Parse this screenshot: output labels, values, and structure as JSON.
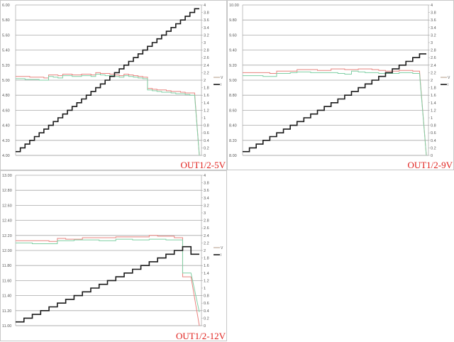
{
  "chart_data": [
    {
      "type": "line",
      "label": "OUT1/2-5V",
      "ylim_left": [
        4.0,
        6.0
      ],
      "left_ticks": [
        "4.00",
        "4.20",
        "4.40",
        "4.60",
        "4.80",
        "5.00",
        "5.20",
        "5.40",
        "5.60",
        "5.80",
        "6.00"
      ],
      "ylim_right": [
        0,
        4
      ],
      "right_ticks": [
        "0",
        "0.2",
        "0.4",
        "0.6",
        "0.8",
        "1",
        "1.2",
        "1.4",
        "1.6",
        "1.8",
        "2",
        "2.2",
        "2.4",
        "2.6",
        "2.8",
        "3",
        "3.2",
        "3.4",
        "3.6",
        "3.8",
        "4"
      ],
      "grid": true,
      "legend": {
        "placement": "right",
        "entries": [
          "V",
          "I"
        ]
      },
      "series": [
        {
          "axis": "left",
          "color": "#e8837f",
          "values": [
            5.05,
            5.05,
            5.05,
            5.04,
            5.04,
            5.04,
            5.03,
            5.07,
            5.07,
            5.06,
            5.08,
            5.08,
            5.07,
            5.07,
            5.08,
            5.08,
            5.07,
            5.1,
            5.09,
            5.09,
            5.08,
            5.07,
            5.06,
            5.08,
            5.07,
            5.06,
            5.05,
            5.04,
            4.89,
            4.88,
            4.87,
            4.87,
            4.86,
            4.85,
            4.85,
            4.84,
            4.83,
            4.83,
            4.0
          ]
        },
        {
          "axis": "left",
          "color": "#7fcfa4",
          "values": [
            5.02,
            5.02,
            5.01,
            5.01,
            5.01,
            5.0,
            5.0,
            5.05,
            5.04,
            5.03,
            5.06,
            5.06,
            5.05,
            5.05,
            5.06,
            5.06,
            5.05,
            5.08,
            5.07,
            5.06,
            5.06,
            5.05,
            5.04,
            5.06,
            5.05,
            5.04,
            5.03,
            5.02,
            4.87,
            4.86,
            4.85,
            4.84,
            4.84,
            4.83,
            4.82,
            4.82,
            4.81,
            4.8,
            4.0
          ]
        },
        {
          "axis": "right",
          "color": "#1a1a1a",
          "values": [
            0.1,
            0.2,
            0.3,
            0.4,
            0.5,
            0.6,
            0.7,
            0.8,
            0.9,
            1.0,
            1.1,
            1.2,
            1.3,
            1.4,
            1.5,
            1.6,
            1.7,
            1.8,
            1.9,
            2.0,
            2.1,
            2.2,
            2.3,
            2.4,
            2.5,
            2.6,
            2.7,
            2.8,
            2.9,
            3.0,
            3.1,
            3.2,
            3.3,
            3.4,
            3.5,
            3.6,
            3.7,
            3.8,
            3.9
          ]
        }
      ]
    },
    {
      "type": "line",
      "label": "OUT1/2-9V",
      "ylim_left": [
        8.0,
        10.0
      ],
      "left_ticks": [
        "8.00",
        "8.20",
        "8.40",
        "8.60",
        "8.80",
        "9.00",
        "9.20",
        "9.40",
        "9.60",
        "9.80",
        "10.00"
      ],
      "ylim_right": [
        0,
        4
      ],
      "right_ticks": [
        "0",
        "0.2",
        "0.4",
        "0.6",
        "0.8",
        "1",
        "1.2",
        "1.4",
        "1.6",
        "1.8",
        "2",
        "2.2",
        "2.4",
        "2.6",
        "2.8",
        "3",
        "3.2",
        "3.4",
        "3.6",
        "3.8",
        "4"
      ],
      "grid": true,
      "legend": {
        "placement": "right",
        "entries": [
          "V",
          "I"
        ]
      },
      "series": [
        {
          "axis": "left",
          "color": "#e8837f",
          "values": [
            9.1,
            9.1,
            9.1,
            9.1,
            9.09,
            9.12,
            9.12,
            9.12,
            9.14,
            9.14,
            9.14,
            9.13,
            9.13,
            9.15,
            9.15,
            9.14,
            9.14,
            9.15,
            9.15,
            9.14,
            9.13,
            9.12,
            9.12,
            9.13,
            9.13,
            9.12,
            8.0
          ]
        },
        {
          "axis": "left",
          "color": "#7fcfa4",
          "values": [
            9.06,
            9.06,
            9.06,
            9.05,
            9.05,
            9.09,
            9.09,
            9.1,
            9.11,
            9.11,
            9.1,
            9.1,
            9.1,
            9.1,
            9.09,
            9.08,
            9.12,
            9.11,
            9.1,
            9.1,
            9.09,
            9.09,
            9.09,
            9.1,
            9.1,
            9.09,
            8.0
          ]
        },
        {
          "axis": "right",
          "color": "#1a1a1a",
          "values": [
            0.1,
            0.2,
            0.3,
            0.4,
            0.5,
            0.6,
            0.7,
            0.8,
            0.9,
            1.0,
            1.1,
            1.2,
            1.3,
            1.4,
            1.5,
            1.6,
            1.7,
            1.8,
            1.9,
            2.0,
            2.1,
            2.2,
            2.3,
            2.4,
            2.5,
            2.6,
            2.7
          ]
        }
      ]
    },
    {
      "type": "line",
      "label": "OUT1/2-12V",
      "ylim_left": [
        11.0,
        13.0
      ],
      "left_ticks": [
        "11.00",
        "11.20",
        "11.40",
        "11.60",
        "11.80",
        "12.00",
        "12.20",
        "12.40",
        "12.60",
        "12.80",
        "13.00"
      ],
      "ylim_right": [
        0,
        4
      ],
      "right_ticks": [
        "0",
        "0.2",
        "0.4",
        "0.6",
        "0.8",
        "1",
        "1.2",
        "1.4",
        "1.6",
        "1.8",
        "2",
        "2.2",
        "2.4",
        "2.6",
        "2.8",
        "3",
        "3.2",
        "3.4",
        "3.6",
        "3.8",
        "4"
      ],
      "grid": true,
      "legend": {
        "placement": "right",
        "entries": [
          "V",
          "I"
        ]
      },
      "series": [
        {
          "axis": "left",
          "color": "#e8837f",
          "values": [
            12.13,
            12.13,
            12.13,
            12.13,
            12.12,
            12.16,
            12.15,
            12.15,
            12.17,
            12.17,
            12.17,
            12.17,
            12.18,
            12.18,
            12.18,
            12.18,
            12.2,
            12.19,
            12.19,
            12.17,
            11.65,
            11.0
          ]
        },
        {
          "axis": "left",
          "color": "#7fcfa4",
          "values": [
            12.1,
            12.1,
            12.09,
            12.09,
            12.09,
            12.13,
            12.13,
            12.14,
            12.14,
            12.14,
            12.13,
            12.13,
            12.15,
            12.15,
            12.14,
            12.14,
            12.15,
            12.15,
            12.14,
            12.14,
            11.7,
            11.18
          ]
        },
        {
          "axis": "right",
          "color": "#1a1a1a",
          "values": [
            0.1,
            0.2,
            0.3,
            0.4,
            0.5,
            0.6,
            0.7,
            0.8,
            0.9,
            1.0,
            1.1,
            1.2,
            1.3,
            1.4,
            1.5,
            1.6,
            1.7,
            1.8,
            1.9,
            2.0,
            2.1,
            1.9
          ]
        }
      ]
    }
  ]
}
